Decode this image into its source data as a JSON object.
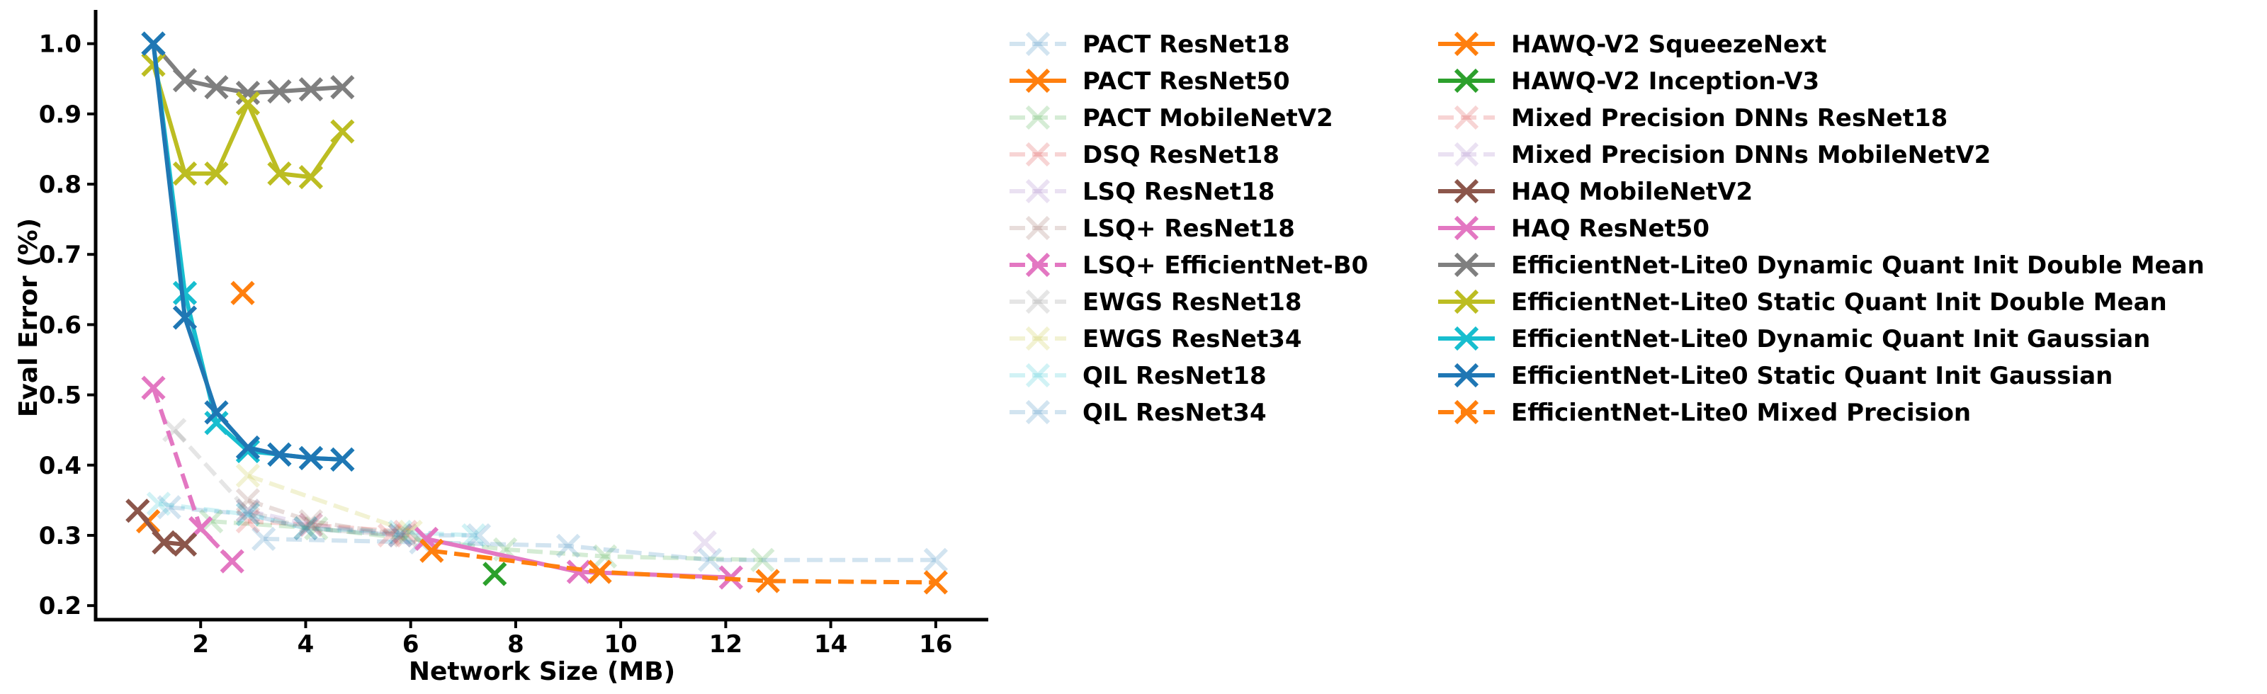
{
  "chart_data": {
    "type": "line",
    "title": "",
    "xlabel": "Network Size (MB)",
    "ylabel": "Eval Error (%)",
    "xlim": [
      0.0,
      17.0
    ],
    "ylim": [
      0.18,
      1.04
    ],
    "x_ticks": [
      2,
      4,
      6,
      8,
      10,
      12,
      14,
      16
    ],
    "x_tick_labels": [
      "2",
      "4",
      "6",
      "8",
      "10",
      "12",
      "14",
      "16"
    ],
    "y_ticks": [
      0.2,
      0.3,
      0.4,
      0.5,
      0.6,
      0.7,
      0.8,
      0.9,
      1.0
    ],
    "y_tick_labels": [
      "0.2",
      "0.3",
      "0.4",
      "0.5",
      "0.6",
      "0.7",
      "0.8",
      "0.9",
      "1.0"
    ],
    "grid": false,
    "legend_position": "right, outside plot, two columns",
    "marker": "x",
    "series": [
      {
        "name": "PACT ResNet18",
        "color": "#1f77b4",
        "faded": true,
        "dash": true,
        "x": [
          1.4,
          2.9,
          4.0,
          5.8,
          7.3
        ],
        "y": [
          0.34,
          0.33,
          0.31,
          0.3,
          0.3
        ]
      },
      {
        "name": "PACT ResNet50",
        "color": "#ff7f0e",
        "faded": false,
        "dash": false,
        "x": [
          2.8
        ],
        "y": [
          0.645
        ]
      },
      {
        "name": "PACT MobileNetV2",
        "color": "#2ca02c",
        "faded": true,
        "dash": true,
        "x": [
          2.2,
          4.2,
          7.8,
          9.7,
          12.7
        ],
        "y": [
          0.32,
          0.31,
          0.28,
          0.27,
          0.265
        ]
      },
      {
        "name": "DSQ ResNet18",
        "color": "#d62728",
        "faded": true,
        "dash": true,
        "x": [
          2.9,
          4.1,
          5.9
        ],
        "y": [
          0.32,
          0.315,
          0.305
        ]
      },
      {
        "name": "LSQ ResNet18",
        "color": "#9467bd",
        "faded": true,
        "dash": true,
        "x": [
          2.9,
          4.1,
          5.8
        ],
        "y": [
          0.335,
          0.315,
          0.3
        ]
      },
      {
        "name": "LSQ+ ResNet18",
        "color": "#8c564b",
        "faded": true,
        "dash": true,
        "x": [
          2.9,
          4.1,
          5.9
        ],
        "y": [
          0.35,
          0.32,
          0.3
        ]
      },
      {
        "name": "LSQ+ EfficientNet-B0",
        "color": "#e377c2",
        "faded": false,
        "dash": true,
        "x": [
          1.1,
          2.0,
          2.6
        ],
        "y": [
          0.51,
          0.31,
          0.263
        ]
      },
      {
        "name": "EWGS ResNet18",
        "color": "#7f7f7f",
        "faded": true,
        "dash": true,
        "x": [
          1.5,
          2.9,
          4.0,
          5.8
        ],
        "y": [
          0.45,
          0.335,
          0.31,
          0.3
        ]
      },
      {
        "name": "EWGS ResNet34",
        "color": "#bcbd22",
        "faded": true,
        "dash": true,
        "x": [
          2.9,
          6.0
        ],
        "y": [
          0.385,
          0.305
        ]
      },
      {
        "name": "QIL ResNet18",
        "color": "#17becf",
        "faded": true,
        "dash": true,
        "x": [
          1.2,
          2.9,
          4.0,
          5.8,
          7.2
        ],
        "y": [
          0.345,
          0.33,
          0.31,
          0.305,
          0.3
        ]
      },
      {
        "name": "QIL ResNet34",
        "color": "#1f77b4",
        "faded": true,
        "dash": true,
        "x": [
          3.2,
          6.2,
          9.0,
          11.7,
          16.0
        ],
        "y": [
          0.295,
          0.29,
          0.285,
          0.265,
          0.265
        ]
      },
      {
        "name": "HAWQ-V2 SqueezeNext",
        "color": "#ff7f0e",
        "faded": false,
        "dash": false,
        "x": [
          1.0
        ],
        "y": [
          0.32
        ]
      },
      {
        "name": "HAWQ-V2 Inception-V3",
        "color": "#2ca02c",
        "faded": false,
        "dash": false,
        "x": [
          7.6
        ],
        "y": [
          0.245
        ]
      },
      {
        "name": "Mixed Precision DNNs ResNet18",
        "color": "#d62728",
        "faded": true,
        "dash": true,
        "x": [
          5.6
        ],
        "y": [
          0.3
        ]
      },
      {
        "name": "Mixed Precision DNNs MobileNetV2",
        "color": "#9467bd",
        "faded": true,
        "dash": true,
        "x": [
          11.6
        ],
        "y": [
          0.29
        ]
      },
      {
        "name": "HAQ MobileNetV2",
        "color": "#8c564b",
        "faded": false,
        "dash": false,
        "x": [
          0.8,
          1.3,
          1.7
        ],
        "y": [
          0.335,
          0.29,
          0.287
        ]
      },
      {
        "name": "HAQ ResNet50",
        "color": "#e377c2",
        "faded": false,
        "dash": false,
        "x": [
          6.3,
          9.2,
          12.1
        ],
        "y": [
          0.295,
          0.248,
          0.24
        ]
      },
      {
        "name": "EfficientNet-Lite0 Dynamic Quant Init Double Mean",
        "color": "#7f7f7f",
        "faded": false,
        "dash": false,
        "x": [
          1.1,
          1.7,
          2.3,
          2.9,
          3.5,
          4.1,
          4.7
        ],
        "y": [
          1.0,
          0.948,
          0.938,
          0.93,
          0.932,
          0.935,
          0.938
        ]
      },
      {
        "name": "EfficientNet-Lite0 Static Quant Init Double Mean",
        "color": "#bcbd22",
        "faded": false,
        "dash": false,
        "x": [
          1.1,
          1.7,
          2.3,
          2.9,
          3.5,
          4.1,
          4.7
        ],
        "y": [
          0.97,
          0.815,
          0.815,
          0.915,
          0.815,
          0.81,
          0.875
        ]
      },
      {
        "name": "EfficientNet-Lite0 Dynamic Quant Init Gaussian",
        "color": "#17becf",
        "faded": false,
        "dash": false,
        "x": [
          1.1,
          1.7,
          2.3,
          2.9,
          3.5,
          4.1,
          4.7
        ],
        "y": [
          1.0,
          0.645,
          0.46,
          0.42,
          0.415,
          0.41,
          0.408
        ]
      },
      {
        "name": "EfficientNet-Lite0 Static Quant Init Gaussian",
        "color": "#1f77b4",
        "faded": false,
        "dash": false,
        "x": [
          1.1,
          1.7,
          2.3,
          2.9,
          3.5,
          4.1,
          4.7
        ],
        "y": [
          1.0,
          0.61,
          0.475,
          0.425,
          0.415,
          0.41,
          0.408
        ]
      },
      {
        "name": "EfficientNet-Lite0 Mixed Precision",
        "color": "#ff7f0e",
        "faded": false,
        "dash": true,
        "x": [
          6.4,
          9.6,
          12.8,
          16.0
        ],
        "y": [
          0.278,
          0.248,
          0.235,
          0.233
        ]
      }
    ]
  }
}
